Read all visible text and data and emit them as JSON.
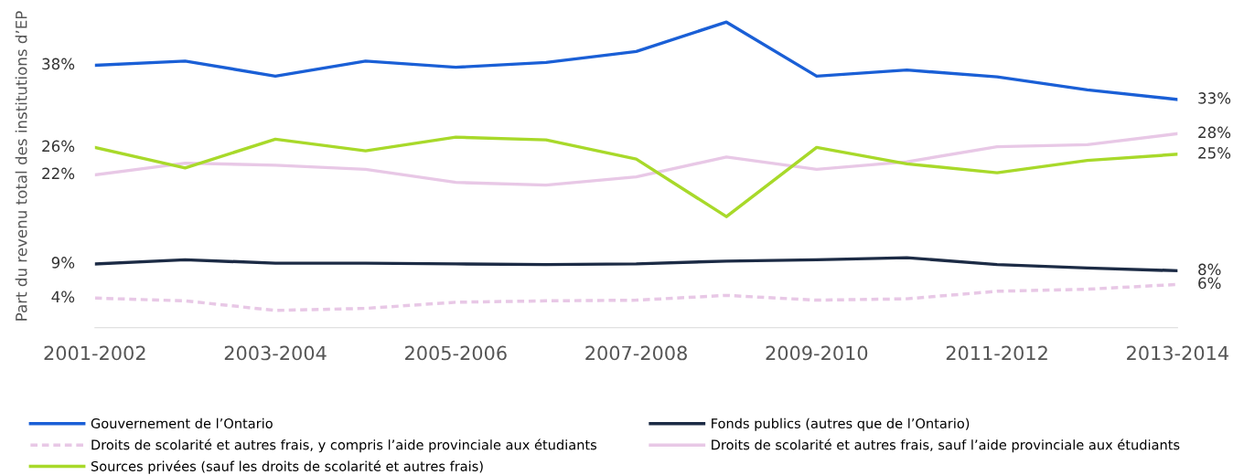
{
  "chart_data": {
    "type": "line",
    "ylabel": "Part du revenu total des institutions d’EP",
    "categories": [
      "2001-2002",
      null,
      "2003-2004",
      null,
      "2005-2006",
      null,
      "2007-2008",
      null,
      "2009-2010",
      null,
      "2011-2012",
      null,
      "2013-2014"
    ],
    "tick_labels": "x",
    "grid": false,
    "legend": "bottom",
    "marker": "none",
    "series": [
      {
        "name": "Gouvernement de l’Ontario",
        "color": "#1a5fd6",
        "line_style": "solid",
        "values": [
          38,
          38.6,
          36.4,
          38.6,
          37.7,
          38.4,
          40.0,
          44.3,
          36.4,
          37.3,
          36.3,
          34.4,
          33
        ],
        "value_labels": [
          "38%",
          null,
          null,
          null,
          null,
          null,
          null,
          null,
          null,
          null,
          null,
          null,
          "33%"
        ]
      },
      {
        "name": "Fonds publics (autres que de l’Ontario)",
        "color": "#1c2b45",
        "line_style": "solid",
        "values": [
          9,
          9.6,
          9.1,
          9.1,
          9.0,
          8.9,
          9.0,
          9.4,
          9.6,
          9.9,
          8.9,
          8.4,
          8
        ],
        "value_labels": [
          "9%",
          null,
          null,
          null,
          null,
          null,
          null,
          null,
          null,
          null,
          null,
          null,
          "8%"
        ]
      },
      {
        "name": "Droits de scolarité et autres frais, y compris l’aide provinciale aux étudiants",
        "color": "#e8c8e6",
        "line_style": "dashed",
        "values": [
          4,
          3.6,
          2.2,
          2.5,
          3.4,
          3.6,
          3.7,
          4.4,
          3.7,
          3.9,
          5.0,
          5.3,
          6
        ],
        "value_labels": [
          "4%",
          null,
          null,
          null,
          null,
          null,
          null,
          null,
          null,
          null,
          null,
          null,
          "6%"
        ]
      },
      {
        "name": "Droits de scolarité et autres frais, sauf l’aide provinciale aux étudiants",
        "color": "#e8c8e6",
        "line_style": "solid",
        "values": [
          22,
          23.7,
          23.4,
          22.8,
          20.9,
          20.5,
          21.7,
          24.6,
          22.8,
          23.9,
          26.1,
          26.4,
          28
        ],
        "value_labels": [
          "22%",
          null,
          null,
          null,
          null,
          null,
          null,
          null,
          null,
          null,
          null,
          null,
          "28%"
        ]
      },
      {
        "name": "Sources privées (sauf les droits de scolarité et autres frais)",
        "color": "#a8d92a",
        "line_style": "solid",
        "values": [
          26,
          23.0,
          27.2,
          25.5,
          27.5,
          27.1,
          24.3,
          15.9,
          26,
          23.6,
          22.3,
          24.1,
          25
        ],
        "value_labels": [
          "26%",
          null,
          null,
          null,
          null,
          null,
          null,
          null,
          null,
          null,
          null,
          null,
          "25%"
        ]
      }
    ]
  }
}
